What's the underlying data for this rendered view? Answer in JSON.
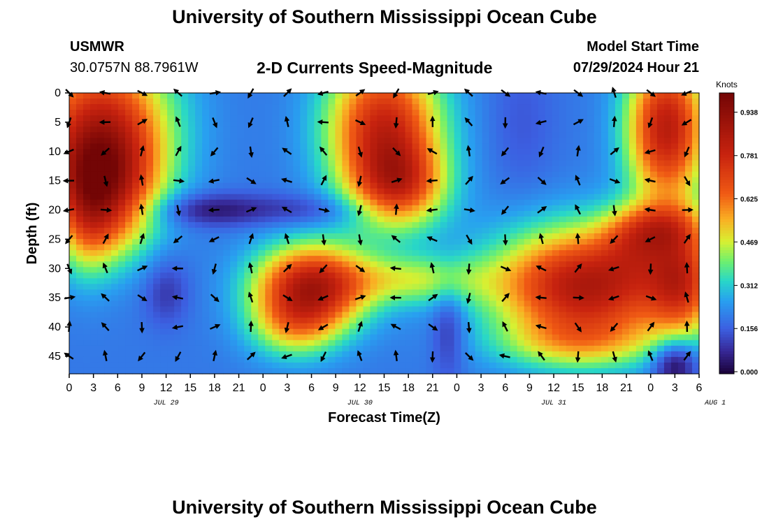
{
  "header": {
    "title": "University of Southern Mississippi Ocean Cube",
    "station_id": "USMWR",
    "station_coords": "30.0757N  88.7961W",
    "subtitle": "2-D Currents Speed-Magnitude",
    "model_label": "Model Start Time",
    "model_time": "07/29/2024 Hour 21"
  },
  "footer": {
    "title": "University of Southern Mississippi Ocean Cube"
  },
  "chart_data": {
    "type": "heatmap",
    "title": "2-D Currents Speed-Magnitude",
    "xlabel": "Forecast Time(Z)",
    "ylabel": "Depth (ft)",
    "x_tick_labels": [
      "0",
      "3",
      "6",
      "9",
      "12",
      "15",
      "18",
      "21",
      "0",
      "3",
      "6",
      "9",
      "12",
      "15",
      "18",
      "21",
      "0",
      "3",
      "6",
      "9",
      "12",
      "15",
      "18",
      "21",
      "0",
      "3",
      "6"
    ],
    "date_labels": [
      {
        "label": "JUL 29",
        "hour": 12
      },
      {
        "label": "JUL 30",
        "hour": 36
      },
      {
        "label": "JUL 31",
        "hour": 60
      },
      {
        "label": "AUG 1",
        "hour": 80
      }
    ],
    "x_range_hours": [
      0,
      78
    ],
    "y_ticks": [
      0,
      5,
      10,
      15,
      20,
      25,
      30,
      35,
      40,
      45
    ],
    "y_range_ft": [
      0,
      48
    ],
    "colorbar": {
      "label": "Knots",
      "tick_labels": [
        "0.000",
        "0.156",
        "0.312",
        "0.469",
        "0.625",
        "0.781",
        "0.938"
      ],
      "range": [
        0,
        1.0
      ]
    },
    "unit": "knots",
    "arrow_times_hours": [
      0,
      4.5,
      9,
      13.5,
      18,
      22.5,
      27,
      31.5,
      36,
      40.5,
      45,
      49.5,
      54,
      58.5,
      63,
      67.5,
      72,
      76.5
    ],
    "arrow_depths_ft": [
      0,
      5,
      10,
      15,
      20,
      25,
      30,
      35,
      40,
      45
    ],
    "speed_features": [
      {
        "t": 4,
        "d": 5,
        "st": 6,
        "sd": 9,
        "v": 0.55
      },
      {
        "t": 4,
        "d": 14,
        "st": 5,
        "sd": 6,
        "v": 0.35
      },
      {
        "t": 5,
        "d": 22,
        "st": 4,
        "sd": 6,
        "v": 0.25
      },
      {
        "t": 2,
        "d": 22,
        "st": 2.5,
        "sd": 7,
        "v": 0.2
      },
      {
        "t": 30,
        "d": 33,
        "st": 5,
        "sd": 5,
        "v": 0.62
      },
      {
        "t": 28,
        "d": 40,
        "st": 4,
        "sd": 4,
        "v": 0.25
      },
      {
        "t": 39,
        "d": 6,
        "st": 5,
        "sd": 9,
        "v": 0.58
      },
      {
        "t": 41,
        "d": 16,
        "st": 4,
        "sd": 5,
        "v": 0.35
      },
      {
        "t": 43,
        "d": 32,
        "st": 6,
        "sd": 3,
        "v": 0.22
      },
      {
        "t": 64,
        "d": 33,
        "st": 8,
        "sd": 7,
        "v": 0.65
      },
      {
        "t": 63,
        "d": 43,
        "st": 7,
        "sd": 3,
        "v": 0.18
      },
      {
        "t": 74,
        "d": 6,
        "st": 3.5,
        "sd": 9,
        "v": 0.62
      },
      {
        "t": 76,
        "d": 32,
        "st": 3,
        "sd": 7,
        "v": 0.4
      },
      {
        "t": 73,
        "d": 23,
        "st": 4,
        "sd": 3,
        "v": 0.25
      },
      {
        "t": 70,
        "d": 26,
        "st": 3,
        "sd": 4,
        "v": 0.15
      },
      {
        "t": 17,
        "d": 20,
        "st": 5,
        "sd": 2,
        "v": -0.15
      },
      {
        "t": 30,
        "d": 20,
        "st": 6,
        "sd": 2,
        "v": -0.1
      },
      {
        "t": 12,
        "d": 34,
        "st": 2,
        "sd": 4,
        "v": -0.1
      },
      {
        "t": 47,
        "d": 40,
        "st": 1.5,
        "sd": 6,
        "v": -0.12
      },
      {
        "t": 75,
        "d": 46,
        "st": 2,
        "sd": 3,
        "v": -0.25
      },
      {
        "t": 56,
        "d": 5,
        "st": 3,
        "sd": 9,
        "v": -0.05
      }
    ]
  }
}
